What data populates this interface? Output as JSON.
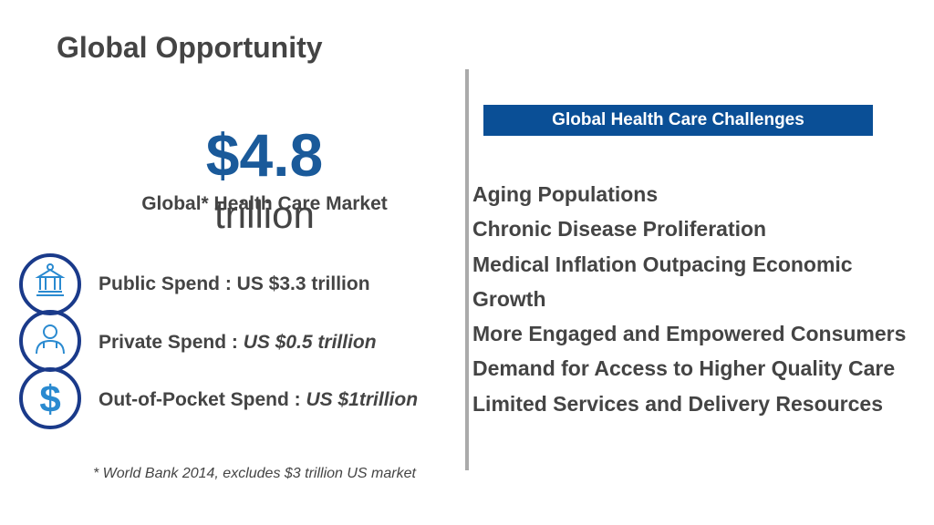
{
  "header": {
    "title": "Global Opportunity"
  },
  "market": {
    "amount": "$4.8",
    "unit": "trillion",
    "label": "Global* Health Care Market"
  },
  "spend": [
    {
      "label": "Public Spend : US $3.3 trillion",
      "value": ""
    },
    {
      "label": "Private Spend : ",
      "value": "US $0.5 trillion"
    },
    {
      "label": "Out-of-Pocket Spend : ",
      "value": "US $1trillion"
    }
  ],
  "footnote": "* World Bank 2014, excludes $3 trillion US market",
  "challenges": {
    "title": "Global Health Care Challenges",
    "items": [
      "Aging Populations",
      "Chronic Disease Proliferation",
      "Medical Inflation Outpacing Economic Growth",
      "More Engaged and Empowered Consumers",
      "Demand for Access to Higher Quality Care",
      "Limited Services and Delivery Resources"
    ]
  }
}
